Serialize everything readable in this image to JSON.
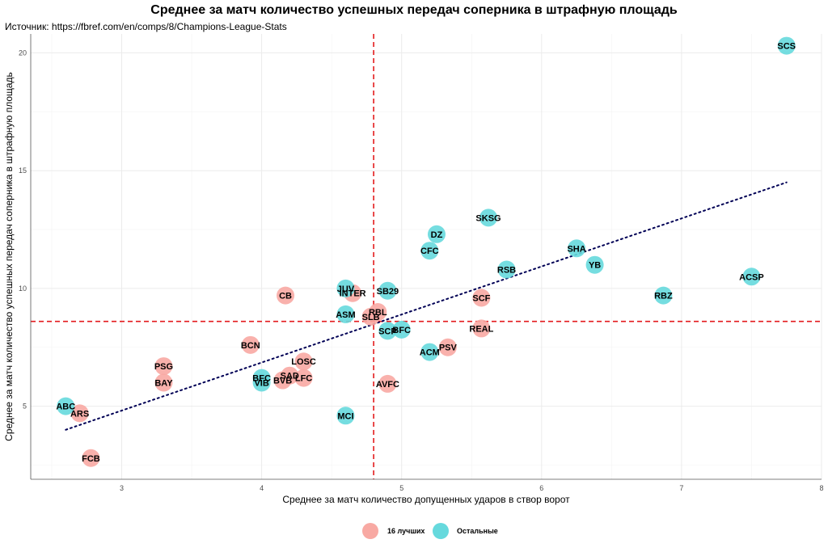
{
  "title": "Среднее за матч количество успешных передач соперника в штрафную площадь",
  "subtitle": "Источник: https://fbref.com/en/comps/8/Champions-League-Stats",
  "colors": {
    "top16": "#f8a9a3",
    "others": "#66d9dd",
    "ref_line": "#e31a1c",
    "trend": "#000055",
    "grid": "#ebebeb"
  },
  "chart_data": {
    "type": "scatter",
    "xlabel": "Среднее за матч количество допущенных ударов в створ ворот",
    "ylabel": "Среднее за матч количество успешных передач соперника в штрафную площадь",
    "xlim": [
      2.35,
      8.0
    ],
    "ylim": [
      1.9,
      20.8
    ],
    "x_ticks": [
      3,
      4,
      5,
      6,
      7,
      8
    ],
    "y_ticks": [
      5,
      10,
      15,
      20
    ],
    "grid": true,
    "ref_lines": {
      "x": 4.8,
      "y": 8.6
    },
    "trend_line": {
      "x": [
        2.6,
        7.75
      ],
      "y": [
        4.0,
        14.5
      ]
    },
    "legend_position": "bottom",
    "series": [
      {
        "name": "16 лучших",
        "points": [
          {
            "label": "ARS",
            "x": 2.7,
            "y": 4.7
          },
          {
            "label": "FCB",
            "x": 2.78,
            "y": 2.8
          },
          {
            "label": "PSG",
            "x": 3.3,
            "y": 6.7
          },
          {
            "label": "BAY",
            "x": 3.3,
            "y": 6.0
          },
          {
            "label": "BCN",
            "x": 3.92,
            "y": 7.6
          },
          {
            "label": "SAD",
            "x": 4.2,
            "y": 6.3
          },
          {
            "label": "BVB",
            "x": 4.15,
            "y": 6.1
          },
          {
            "label": "LFC",
            "x": 4.3,
            "y": 6.2
          },
          {
            "label": "LOSC",
            "x": 4.3,
            "y": 6.9
          },
          {
            "label": "CB",
            "x": 4.17,
            "y": 9.7
          },
          {
            "label": "INTER",
            "x": 4.65,
            "y": 9.8
          },
          {
            "label": "SLB",
            "x": 4.78,
            "y": 8.8
          },
          {
            "label": "RBL",
            "x": 4.83,
            "y": 9.0
          },
          {
            "label": "AVFC",
            "x": 4.9,
            "y": 5.95
          },
          {
            "label": "PSV",
            "x": 5.33,
            "y": 7.5
          },
          {
            "label": "SCF",
            "x": 5.57,
            "y": 9.6
          },
          {
            "label": "REAL",
            "x": 5.57,
            "y": 8.3
          }
        ]
      },
      {
        "name": "Остальные",
        "points": [
          {
            "label": "ABC",
            "x": 2.6,
            "y": 5.0
          },
          {
            "label": "BFC",
            "x": 4.0,
            "y": 6.2
          },
          {
            "label": "VIB",
            "x": 4.0,
            "y": 6.0
          },
          {
            "label": "MCI",
            "x": 4.6,
            "y": 4.6
          },
          {
            "label": "ASM",
            "x": 4.6,
            "y": 8.9
          },
          {
            "label": "JUV",
            "x": 4.6,
            "y": 10.0
          },
          {
            "label": "SB29",
            "x": 4.9,
            "y": 9.9
          },
          {
            "label": "SCP",
            "x": 4.9,
            "y": 8.2
          },
          {
            "label": "BFC",
            "x": 5.0,
            "y": 8.25
          },
          {
            "label": "ACM",
            "x": 5.2,
            "y": 7.3
          },
          {
            "label": "CFC",
            "x": 5.2,
            "y": 11.6
          },
          {
            "label": "DZ",
            "x": 5.25,
            "y": 12.3
          },
          {
            "label": "SKSG",
            "x": 5.62,
            "y": 13.0
          },
          {
            "label": "RSB",
            "x": 5.75,
            "y": 10.8
          },
          {
            "label": "SHA",
            "x": 6.25,
            "y": 11.7
          },
          {
            "label": "YB",
            "x": 6.38,
            "y": 11.0
          },
          {
            "label": "RBZ",
            "x": 6.87,
            "y": 9.7
          },
          {
            "label": "ACSP",
            "x": 7.5,
            "y": 10.5
          },
          {
            "label": "SCS",
            "x": 7.75,
            "y": 20.3
          }
        ]
      }
    ]
  }
}
